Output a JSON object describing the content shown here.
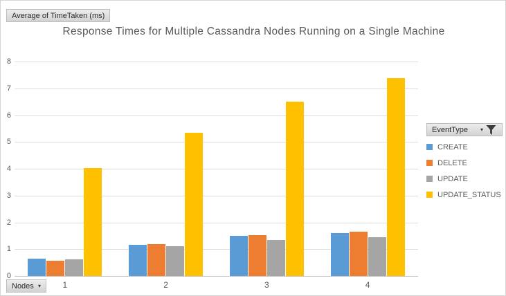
{
  "pivot": {
    "value_field_button": "Average of TimeTaken (ms)",
    "axis_field_button": "Nodes",
    "legend_field_button": "EventType"
  },
  "chart_data": {
    "type": "bar",
    "title": "Response Times for Multiple Cassandra Nodes Running on a Single Machine",
    "categories": [
      "1",
      "2",
      "3",
      "4"
    ],
    "series": [
      {
        "name": "CREATE",
        "color": "#5B9BD5",
        "values": [
          0.65,
          1.15,
          1.5,
          1.6
        ]
      },
      {
        "name": "DELETE",
        "color": "#ED7D31",
        "values": [
          0.58,
          1.2,
          1.52,
          1.65
        ]
      },
      {
        "name": "UPDATE",
        "color": "#A5A5A5",
        "values": [
          0.62,
          1.1,
          1.33,
          1.45
        ]
      },
      {
        "name": "UPDATE_STATUS",
        "color": "#FFC000",
        "values": [
          4.02,
          5.35,
          6.5,
          7.37
        ]
      }
    ],
    "xlabel": "Nodes",
    "ylabel": "Average of TimeTaken (ms)",
    "ylim": [
      0,
      8
    ],
    "yticks": [
      0,
      1,
      2,
      3,
      4,
      5,
      6,
      7,
      8
    ],
    "grid": true,
    "legend_position": "right",
    "colors": {
      "grid": "#dcdcdc",
      "axis": "#bfbfbf",
      "text": "#595959"
    }
  }
}
